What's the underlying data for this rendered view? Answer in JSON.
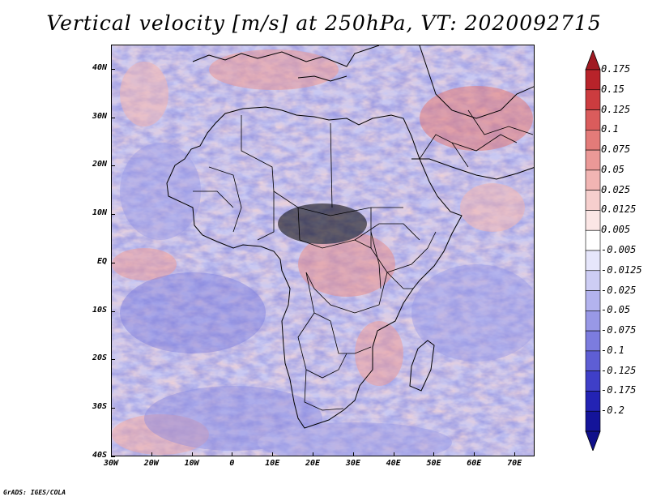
{
  "title": "Vertical velocity [m/s] at 250hPa, VT: 2020092715",
  "credit": "GrADS: IGES/COLA",
  "map": {
    "lon_range": [
      -30,
      75
    ],
    "lat_range": [
      -40,
      45
    ],
    "lat_labels": [
      "40N",
      "30N",
      "20N",
      "10N",
      "EQ",
      "10S",
      "20S",
      "30S",
      "40S"
    ],
    "lat_values": [
      40,
      30,
      20,
      10,
      0,
      -10,
      -20,
      -30,
      -40
    ],
    "lon_labels": [
      "30W",
      "20W",
      "10W",
      "0",
      "10E",
      "20E",
      "30E",
      "40E",
      "50E",
      "60E",
      "70E"
    ],
    "lon_values": [
      -30,
      -20,
      -10,
      0,
      10,
      20,
      30,
      40,
      50,
      60,
      70
    ]
  },
  "colorbar": {
    "labels": [
      "0.175",
      "0.15",
      "0.125",
      "0.1",
      "0.075",
      "0.05",
      "0.025",
      "0.0125",
      "0.005",
      "-0.005",
      "-0.0125",
      "-0.025",
      "-0.05",
      "-0.075",
      "-0.1",
      "-0.125",
      "-0.175",
      "-0.2"
    ],
    "colors": [
      "#b8232a",
      "#cc3c3f",
      "#da5c5c",
      "#e37b79",
      "#eb9997",
      "#f1b5b3",
      "#f6cfcd",
      "#fbe6e5",
      "#ffffff",
      "#e6e6fb",
      "#cdcdf4",
      "#b3b3ee",
      "#9898e6",
      "#7c7cde",
      "#5e5ed4",
      "#3f3fc8",
      "#2323b4",
      "#14149a"
    ],
    "top_arrow_color": "#a01a22",
    "bottom_arrow_color": "#10108a"
  }
}
